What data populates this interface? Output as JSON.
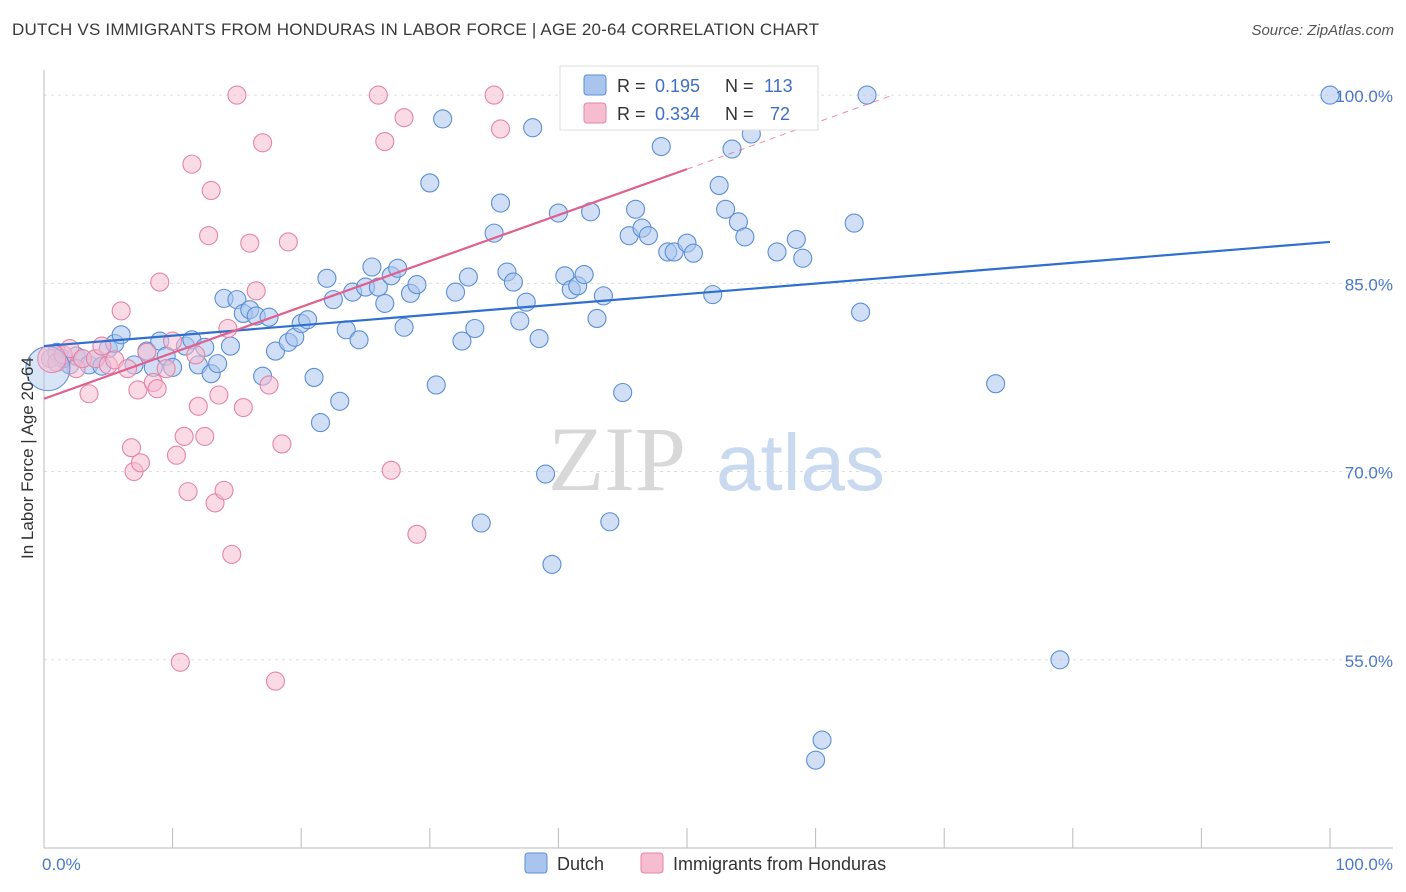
{
  "title": "DUTCH VS IMMIGRANTS FROM HONDURAS IN LABOR FORCE | AGE 20-64 CORRELATION CHART",
  "source": "Source: ZipAtlas.com",
  "watermark": {
    "zip": "ZIP",
    "atlas": "atlas"
  },
  "colors": {
    "dutch_fill": "#a9c5ee",
    "dutch_stroke": "#5b8fd6",
    "dutch_line": "#2f6fce",
    "honduras_fill": "#f6bcd0",
    "honduras_stroke": "#e584a8",
    "honduras_line": "#e0608f",
    "grid": "#dddddd",
    "tick_text": "#4a78c8"
  },
  "legend": {
    "rows": [
      {
        "r_label": "R =",
        "r_value": "0.195",
        "n_label": "N =",
        "n_value": "113"
      },
      {
        "r_label": "R =",
        "r_value": "0.334",
        "n_label": "N =",
        "n_value": "72"
      }
    ]
  },
  "chart_data": {
    "type": "scatter",
    "title": "DUTCH VS IMMIGRANTS FROM HONDURAS IN LABOR FORCE | AGE 20-64 CORRELATION CHART",
    "xlabel": "",
    "ylabel": "In Labor Force | Age 20-64",
    "xlim": [
      0,
      100
    ],
    "ylim": [
      40,
      102
    ],
    "x_tick_labels": [
      "0.0%",
      "100.0%"
    ],
    "y_ticks": [
      55,
      70,
      85,
      100
    ],
    "y_tick_labels": [
      "55.0%",
      "70.0%",
      "85.0%",
      "100.0%"
    ],
    "grid": true,
    "legend_position": "top-center",
    "series": [
      {
        "name": "Dutch",
        "trend": {
          "x0": 0,
          "y0": 80.0,
          "x1": 100,
          "y1": 88.3
        },
        "points": [
          [
            1,
            79.5
          ],
          [
            1.5,
            79
          ],
          [
            2,
            78.5
          ],
          [
            2.5,
            79.2
          ],
          [
            3,
            79
          ],
          [
            3.5,
            78.5
          ],
          [
            4,
            79
          ],
          [
            4.5,
            78.4
          ],
          [
            5,
            79.8
          ],
          [
            5.5,
            80.2
          ],
          [
            6,
            80.9
          ],
          [
            7,
            78.5
          ],
          [
            8,
            79.6
          ],
          [
            8.5,
            78.3
          ],
          [
            9,
            80.4
          ],
          [
            9.5,
            79.2
          ],
          [
            10,
            78.3
          ],
          [
            11,
            80
          ],
          [
            11.5,
            80.5
          ],
          [
            12,
            78.5
          ],
          [
            12.5,
            79.9
          ],
          [
            13,
            77.8
          ],
          [
            13.5,
            78.6
          ],
          [
            14,
            83.8
          ],
          [
            14.5,
            80
          ],
          [
            15,
            83.7
          ],
          [
            15.5,
            82.6
          ],
          [
            16,
            82.9
          ],
          [
            16.5,
            82.4
          ],
          [
            17,
            77.6
          ],
          [
            17.5,
            82.3
          ],
          [
            18,
            79.6
          ],
          [
            19,
            80.3
          ],
          [
            19.5,
            80.7
          ],
          [
            20,
            81.8
          ],
          [
            20.5,
            82.1
          ],
          [
            21,
            77.5
          ],
          [
            21.5,
            73.9
          ],
          [
            22,
            85.4
          ],
          [
            22.5,
            83.7
          ],
          [
            23,
            75.6
          ],
          [
            23.5,
            81.3
          ],
          [
            24,
            84.3
          ],
          [
            24.5,
            80.5
          ],
          [
            25,
            84.7
          ],
          [
            25.5,
            86.3
          ],
          [
            26,
            84.7
          ],
          [
            26.5,
            83.4
          ],
          [
            27,
            85.6
          ],
          [
            27.5,
            86.2
          ],
          [
            28,
            81.5
          ],
          [
            28.5,
            84.2
          ],
          [
            29,
            84.9
          ],
          [
            30,
            93
          ],
          [
            30.5,
            76.9
          ],
          [
            31,
            98.1
          ],
          [
            32,
            84.3
          ],
          [
            32.5,
            80.4
          ],
          [
            33,
            85.5
          ],
          [
            33.5,
            81.4
          ],
          [
            34,
            65.9
          ],
          [
            35,
            89
          ],
          [
            35.5,
            91.4
          ],
          [
            36,
            85.9
          ],
          [
            36.5,
            85.1
          ],
          [
            37,
            82
          ],
          [
            37.5,
            83.5
          ],
          [
            38,
            97.4
          ],
          [
            38.5,
            80.6
          ],
          [
            39,
            69.8
          ],
          [
            39.5,
            62.6
          ],
          [
            40,
            90.6
          ],
          [
            40.5,
            85.6
          ],
          [
            41,
            84.5
          ],
          [
            41.5,
            84.8
          ],
          [
            42,
            85.7
          ],
          [
            42.5,
            90.7
          ],
          [
            43,
            82.2
          ],
          [
            43.5,
            84
          ],
          [
            44,
            66
          ],
          [
            45,
            76.3
          ],
          [
            45.5,
            88.8
          ],
          [
            46,
            90.9
          ],
          [
            46.5,
            89.4
          ],
          [
            47,
            88.8
          ],
          [
            48,
            95.9
          ],
          [
            48.5,
            87.5
          ],
          [
            49,
            87.5
          ],
          [
            50,
            88.2
          ],
          [
            50.5,
            87.4
          ],
          [
            52,
            84.1
          ],
          [
            52.5,
            92.8
          ],
          [
            53,
            90.9
          ],
          [
            53.5,
            95.7
          ],
          [
            54,
            89.9
          ],
          [
            54.5,
            88.7
          ],
          [
            55,
            96.9
          ],
          [
            57,
            87.5
          ],
          [
            58.5,
            88.5
          ],
          [
            59,
            87
          ],
          [
            60,
            47
          ],
          [
            60.5,
            48.6
          ],
          [
            63,
            89.8
          ],
          [
            63.5,
            82.7
          ],
          [
            64,
            100
          ],
          [
            74,
            77
          ],
          [
            79,
            55
          ],
          [
            100,
            100
          ]
        ]
      },
      {
        "name": "Immigrants from Honduras",
        "trend": {
          "x0": 0,
          "y0": 75.8,
          "x1": 50,
          "y1": 94.1,
          "dash_x1": 66,
          "dash_y1": 100
        },
        "points": [
          [
            0.5,
            79
          ],
          [
            1,
            78.7
          ],
          [
            1.5,
            79.3
          ],
          [
            2,
            79.8
          ],
          [
            2.5,
            78.2
          ],
          [
            3,
            79
          ],
          [
            3.5,
            76.2
          ],
          [
            4,
            79
          ],
          [
            4.5,
            80
          ],
          [
            5,
            78.5
          ],
          [
            5.5,
            78.9
          ],
          [
            6,
            82.8
          ],
          [
            6.5,
            78.2
          ],
          [
            6.8,
            71.9
          ],
          [
            7,
            70
          ],
          [
            7.3,
            76.5
          ],
          [
            7.5,
            70.7
          ],
          [
            8,
            79.5
          ],
          [
            8.5,
            77.1
          ],
          [
            8.8,
            76.6
          ],
          [
            9,
            85.1
          ],
          [
            9.5,
            78.2
          ],
          [
            10,
            80.4
          ],
          [
            10.3,
            71.3
          ],
          [
            10.6,
            54.8
          ],
          [
            10.9,
            72.8
          ],
          [
            11.2,
            68.4
          ],
          [
            11.5,
            94.5
          ],
          [
            11.8,
            79.3
          ],
          [
            12,
            75.2
          ],
          [
            12.5,
            72.8
          ],
          [
            12.8,
            88.8
          ],
          [
            13,
            92.4
          ],
          [
            13.3,
            67.5
          ],
          [
            13.6,
            76.1
          ],
          [
            14,
            68.5
          ],
          [
            14.3,
            81.4
          ],
          [
            14.6,
            63.4
          ],
          [
            15,
            100
          ],
          [
            15.5,
            75.1
          ],
          [
            16,
            88.2
          ],
          [
            16.5,
            84.4
          ],
          [
            17,
            96.2
          ],
          [
            17.5,
            76.9
          ],
          [
            18,
            53.3
          ],
          [
            18.5,
            72.2
          ],
          [
            19,
            88.3
          ],
          [
            26,
            100
          ],
          [
            26.5,
            96.3
          ],
          [
            27,
            70.1
          ],
          [
            28,
            98.2
          ],
          [
            29,
            65
          ],
          [
            35,
            100
          ],
          [
            35.5,
            97.3
          ]
        ]
      }
    ],
    "bottom_legend": [
      "Dutch",
      "Immigrants from Honduras"
    ]
  }
}
